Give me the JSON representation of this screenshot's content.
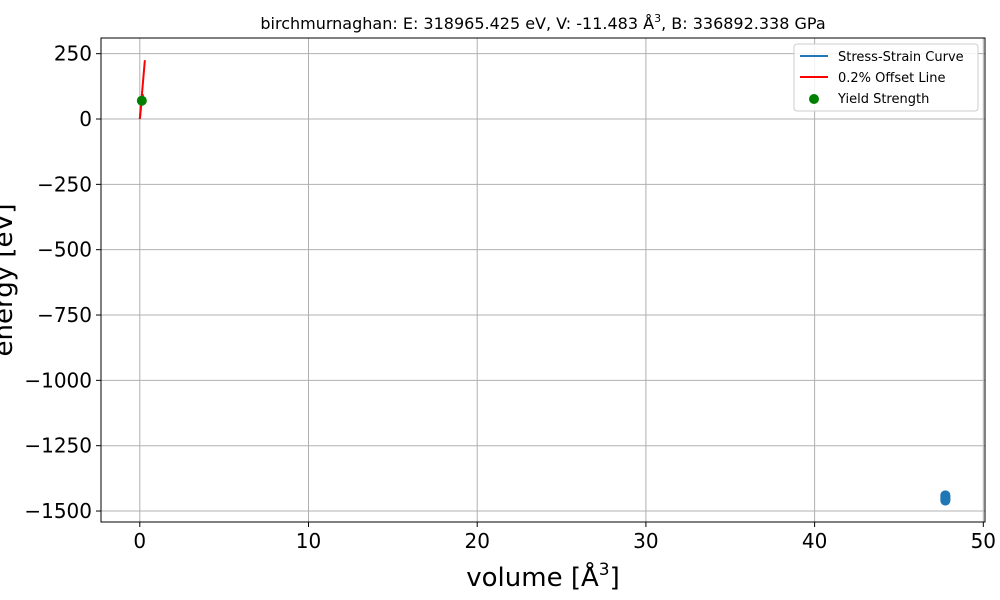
{
  "chart_data": {
    "type": "scatter",
    "title_main": "birchmurnaghan: E: 318965.425 eV, V: -11.483 Å",
    "title_sup": "3",
    "title_rest": ", B: 336892.338 GPa",
    "xlabel_main": "volume [Å",
    "xlabel_sup": "3",
    "xlabel_close": "]",
    "ylabel": "energy [eV]",
    "xlim": [
      -2.3,
      50.1
    ],
    "ylim": [
      -1542,
      310
    ],
    "x_ticks": [
      0,
      10,
      20,
      30,
      40,
      50
    ],
    "x_tick_labels": [
      "0",
      "10",
      "20",
      "30",
      "40",
      "50"
    ],
    "y_ticks": [
      250,
      0,
      -250,
      -500,
      -750,
      -1000,
      -1250,
      -1500
    ],
    "y_tick_labels": [
      "250",
      "0",
      "−250",
      "−500",
      "−750",
      "−1000",
      "−1250",
      "−1500"
    ],
    "grid": true,
    "legend_position": "top-right",
    "series": [
      {
        "name": "Stress-Strain Curve",
        "kind": "line",
        "color": "#1f77b4",
        "x": [
          0.0,
          0.05,
          0.1,
          0.15,
          0.2
        ],
        "y": [
          0,
          30,
          60,
          75,
          95
        ]
      },
      {
        "name": "0.2% Offset Line",
        "kind": "line",
        "color": "#ff0000",
        "x": [
          0.0,
          0.3
        ],
        "y": [
          0,
          225
        ]
      },
      {
        "name": "Yield Strength",
        "kind": "scatter",
        "color": "#008000",
        "x": [
          0.12
        ],
        "y": [
          70
        ]
      },
      {
        "name": "",
        "kind": "scatter",
        "color": "#1f77b4",
        "x": [
          47.75,
          47.75,
          47.75,
          47.75,
          47.75,
          47.75,
          47.75
        ],
        "y": [
          -1440,
          -1445,
          -1448,
          -1451,
          -1454,
          -1457,
          -1460
        ]
      }
    ]
  }
}
